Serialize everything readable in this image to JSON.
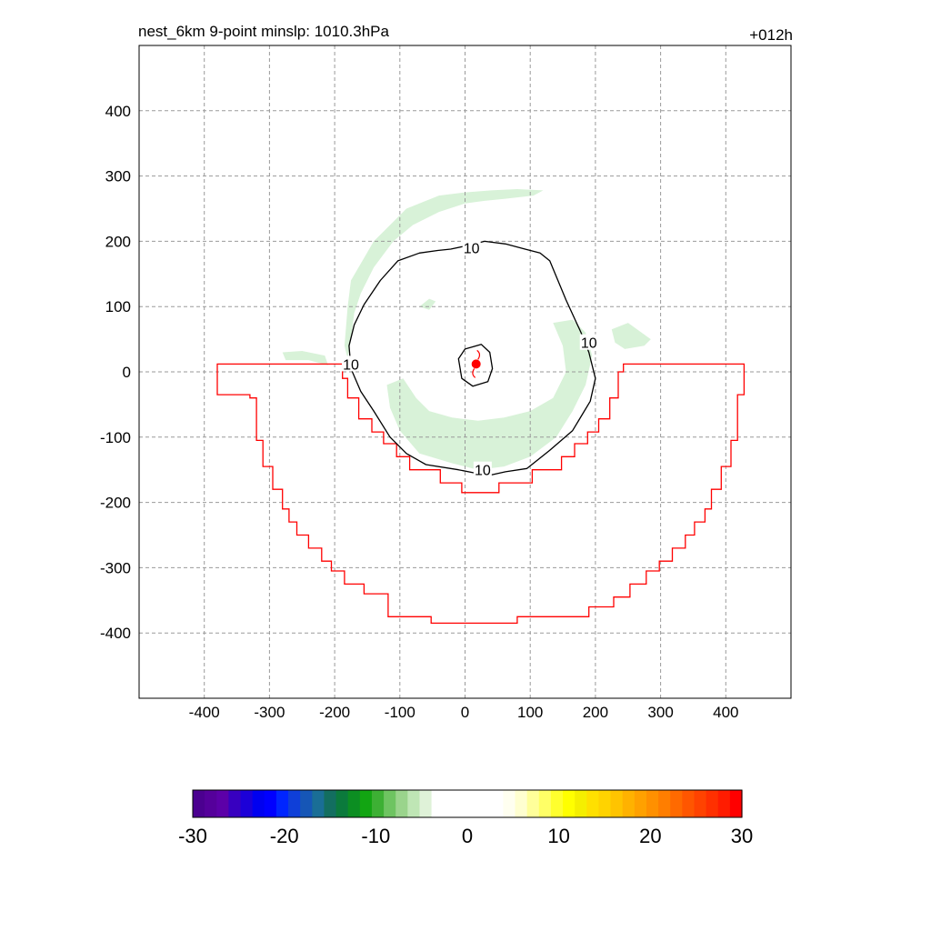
{
  "header": {
    "title": "nest_6km  9-point minslp: 1010.3hPa",
    "forecast_hour": "+012h"
  },
  "chart_data": {
    "type": "contour",
    "xlim": [
      -500,
      500
    ],
    "ylim": [
      -500,
      500
    ],
    "xticks": [
      -400,
      -300,
      -200,
      -100,
      0,
      100,
      200,
      300,
      400
    ],
    "yticks": [
      -400,
      -300,
      -200,
      -100,
      0,
      100,
      200,
      300,
      400
    ],
    "grid": true,
    "colors": {
      "contour": "#000000",
      "boundary": "#ff0000",
      "shading": "#d8f2d8",
      "center": "#ff0000"
    },
    "center_marker": [
      17,
      12
    ],
    "contour_10": {
      "label": "10",
      "outer": [
        [
          -178,
          40
        ],
        [
          -170,
          72
        ],
        [
          -155,
          103
        ],
        [
          -130,
          140
        ],
        [
          -103,
          170
        ],
        [
          -70,
          182
        ],
        [
          -42,
          186
        ],
        [
          -22,
          188
        ],
        [
          2,
          193
        ],
        [
          30,
          200
        ],
        [
          62,
          196
        ],
        [
          92,
          188
        ],
        [
          115,
          182
        ],
        [
          130,
          170
        ],
        [
          155,
          110
        ],
        [
          178,
          60
        ],
        [
          190,
          30
        ],
        [
          200,
          -10
        ],
        [
          192,
          -45
        ],
        [
          165,
          -90
        ],
        [
          130,
          -120
        ],
        [
          95,
          -148
        ],
        [
          62,
          -153
        ],
        [
          40,
          -158
        ],
        [
          15,
          -155
        ],
        [
          -10,
          -150
        ],
        [
          -60,
          -142
        ],
        [
          -90,
          -125
        ],
        [
          -115,
          -100
        ],
        [
          -140,
          -60
        ],
        [
          -160,
          -30
        ],
        [
          -175,
          5
        ]
      ],
      "inner": [
        [
          -10,
          20
        ],
        [
          0,
          35
        ],
        [
          25,
          42
        ],
        [
          38,
          30
        ],
        [
          42,
          5
        ],
        [
          35,
          -15
        ],
        [
          12,
          -22
        ],
        [
          -5,
          -10
        ]
      ],
      "label_positions": [
        [
          10,
          190
        ],
        [
          -175,
          12
        ],
        [
          190,
          45
        ],
        [
          27,
          -150
        ]
      ]
    },
    "boundary_polygon": [
      [
        -380,
        12
      ],
      [
        -188,
        12
      ],
      [
        -188,
        -10
      ],
      [
        -180,
        -10
      ],
      [
        -180,
        -40
      ],
      [
        -163,
        -40
      ],
      [
        -163,
        -72
      ],
      [
        -143,
        -72
      ],
      [
        -143,
        -92
      ],
      [
        -125,
        -92
      ],
      [
        -125,
        -110
      ],
      [
        -105,
        -110
      ],
      [
        -105,
        -130
      ],
      [
        -85,
        -130
      ],
      [
        -85,
        -150
      ],
      [
        -38,
        -150
      ],
      [
        -38,
        -170
      ],
      [
        -5,
        -170
      ],
      [
        -5,
        -185
      ],
      [
        52,
        -185
      ],
      [
        52,
        -170
      ],
      [
        103,
        -170
      ],
      [
        103,
        -150
      ],
      [
        148,
        -150
      ],
      [
        148,
        -130
      ],
      [
        168,
        -130
      ],
      [
        168,
        -110
      ],
      [
        188,
        -110
      ],
      [
        188,
        -92
      ],
      [
        205,
        -92
      ],
      [
        205,
        -72
      ],
      [
        222,
        -72
      ],
      [
        222,
        -40
      ],
      [
        235,
        -40
      ],
      [
        235,
        0
      ],
      [
        243,
        0
      ],
      [
        243,
        12
      ],
      [
        428,
        12
      ],
      [
        428,
        -35
      ],
      [
        418,
        -35
      ],
      [
        418,
        -105
      ],
      [
        408,
        -105
      ],
      [
        408,
        -145
      ],
      [
        393,
        -145
      ],
      [
        393,
        -180
      ],
      [
        378,
        -180
      ],
      [
        378,
        -210
      ],
      [
        368,
        -210
      ],
      [
        368,
        -230
      ],
      [
        352,
        -230
      ],
      [
        352,
        -250
      ],
      [
        338,
        -250
      ],
      [
        338,
        -270
      ],
      [
        318,
        -270
      ],
      [
        318,
        -290
      ],
      [
        298,
        -290
      ],
      [
        298,
        -305
      ],
      [
        278,
        -305
      ],
      [
        278,
        -325
      ],
      [
        253,
        -325
      ],
      [
        253,
        -345
      ],
      [
        228,
        -345
      ],
      [
        228,
        -360
      ],
      [
        190,
        -360
      ],
      [
        190,
        -375
      ],
      [
        80,
        -375
      ],
      [
        80,
        -385
      ],
      [
        -52,
        -385
      ],
      [
        -52,
        -375
      ],
      [
        -118,
        -375
      ],
      [
        -118,
        -340
      ],
      [
        -155,
        -340
      ],
      [
        -155,
        -325
      ],
      [
        -185,
        -325
      ],
      [
        -185,
        -305
      ],
      [
        -205,
        -305
      ],
      [
        -205,
        -290
      ],
      [
        -220,
        -290
      ],
      [
        -220,
        -270
      ],
      [
        -240,
        -270
      ],
      [
        -240,
        -250
      ],
      [
        -258,
        -250
      ],
      [
        -258,
        -230
      ],
      [
        -270,
        -230
      ],
      [
        -270,
        -210
      ],
      [
        -280,
        -210
      ],
      [
        -280,
        -180
      ],
      [
        -295,
        -180
      ],
      [
        -295,
        -145
      ],
      [
        -310,
        -145
      ],
      [
        -310,
        -105
      ],
      [
        -320,
        -105
      ],
      [
        -320,
        -40
      ],
      [
        -330,
        -40
      ],
      [
        -330,
        -35
      ],
      [
        -380,
        -35
      ]
    ],
    "shaded_regions": [
      [
        [
          -175,
          140
        ],
        [
          -140,
          200
        ],
        [
          -90,
          250
        ],
        [
          -40,
          270
        ],
        [
          0,
          275
        ],
        [
          40,
          278
        ],
        [
          80,
          280
        ],
        [
          120,
          278
        ],
        [
          105,
          270
        ],
        [
          60,
          265
        ],
        [
          30,
          262
        ],
        [
          0,
          258
        ],
        [
          -40,
          245
        ],
        [
          -80,
          225
        ],
        [
          -110,
          200
        ],
        [
          -140,
          160
        ],
        [
          -160,
          120
        ],
        [
          -170,
          90
        ],
        [
          -175,
          50
        ],
        [
          -180,
          20
        ],
        [
          -185,
          40
        ],
        [
          -180,
          100
        ]
      ],
      [
        [
          -280,
          30
        ],
        [
          -250,
          32
        ],
        [
          -215,
          25
        ],
        [
          -210,
          10
        ],
        [
          -240,
          18
        ],
        [
          -275,
          18
        ]
      ],
      [
        [
          -70,
          100
        ],
        [
          -55,
          112
        ],
        [
          -45,
          108
        ],
        [
          -55,
          95
        ]
      ],
      [
        [
          135,
          75
        ],
        [
          165,
          80
        ],
        [
          185,
          60
        ],
        [
          195,
          25
        ],
        [
          185,
          -20
        ],
        [
          165,
          -60
        ],
        [
          140,
          -100
        ],
        [
          100,
          -130
        ],
        [
          60,
          -145
        ],
        [
          20,
          -150
        ],
        [
          -20,
          -140
        ],
        [
          -70,
          -125
        ],
        [
          -100,
          -90
        ],
        [
          -115,
          -55
        ],
        [
          -120,
          -20
        ],
        [
          -95,
          -10
        ],
        [
          -75,
          -40
        ],
        [
          -55,
          -60
        ],
        [
          -20,
          -70
        ],
        [
          20,
          -75
        ],
        [
          60,
          -70
        ],
        [
          100,
          -60
        ],
        [
          135,
          -40
        ],
        [
          155,
          0
        ],
        [
          150,
          40
        ]
      ],
      [
        [
          225,
          65
        ],
        [
          250,
          75
        ],
        [
          285,
          50
        ],
        [
          275,
          40
        ],
        [
          245,
          35
        ],
        [
          230,
          45
        ]
      ]
    ]
  },
  "colorbar": {
    "ticks": [
      "-30",
      "-20",
      "-10",
      "0",
      "10",
      "20",
      "30"
    ],
    "colors": [
      "#4b0090",
      "#55009b",
      "#5c00a8",
      "#3800c0",
      "#1c00d8",
      "#0000f0",
      "#0000ff",
      "#0025ff",
      "#0f3fd8",
      "#1656b6",
      "#1a6e96",
      "#136e60",
      "#0b7a3c",
      "#0c8e22",
      "#12a512",
      "#3db034",
      "#6ec461",
      "#9ad48c",
      "#bfe6b5",
      "#dff2d8",
      "#ffffff",
      "#ffffff",
      "#ffffff",
      "#ffffff",
      "#ffffff",
      "#ffffff",
      "#fffff0",
      "#ffffd0",
      "#ffff9a",
      "#ffff66",
      "#ffff2e",
      "#ffff00",
      "#f5ef00",
      "#ffe000",
      "#ffd300",
      "#ffc400",
      "#ffb200",
      "#ffa100",
      "#ff9000",
      "#ff7e00",
      "#ff6a00",
      "#ff5600",
      "#ff4300",
      "#ff3000",
      "#ff1c00",
      "#ff0000"
    ]
  }
}
